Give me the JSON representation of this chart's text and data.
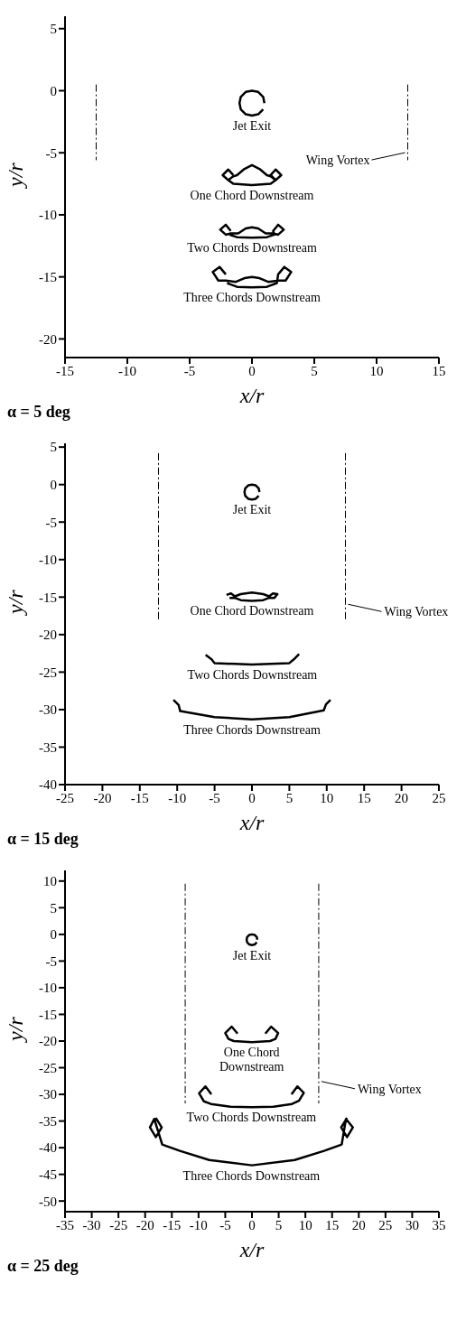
{
  "chart_data": [
    {
      "type": "line",
      "title": "α = 5 deg",
      "xlabel": "x/r",
      "ylabel": "y/r",
      "xlim": [
        -15,
        15
      ],
      "ylim": [
        -21.5,
        6
      ],
      "xticks": [
        -15,
        -10,
        -5,
        0,
        5,
        10,
        15
      ],
      "yticks": [
        -20,
        -15,
        -10,
        -5,
        0,
        5
      ],
      "marker": "none",
      "series": [
        {
          "color": "#000000",
          "x": [
            1,
            0.9,
            0.5,
            0,
            -0.5,
            -0.9,
            -1,
            -0.9,
            -0.5,
            0,
            0.5,
            0.9
          ],
          "values": [
            -1,
            -0.5,
            -0.1,
            0,
            -0.1,
            -0.5,
            -1,
            -1.5,
            -1.9,
            -2,
            -1.9,
            -1.5
          ]
        },
        {
          "color": "#000000",
          "x": [
            -1.5,
            -1.9,
            -2.35,
            -1.9,
            -1.5,
            -1.2,
            -0.6,
            0,
            0.6,
            1.2,
            1.5,
            1.9,
            2.35,
            1.9,
            1.5,
            1.9,
            1.5,
            0,
            -1.5,
            -1.9
          ],
          "values": [
            -6.8,
            -6.35,
            -6.8,
            -7.2,
            -6.9,
            -6.8,
            -6.3,
            -6.0,
            -6.3,
            -6.8,
            -6.9,
            -7.2,
            -6.8,
            -6.35,
            -6.8,
            -7.2,
            -7.5,
            -7.6,
            -7.5,
            -7.2
          ]
        },
        {
          "color": "#000000",
          "x": [
            -1.7,
            -2.1,
            -2.55,
            -2.1,
            -1.7,
            -1.1,
            -0.5,
            0,
            0.5,
            1.1,
            1.7,
            2.1,
            2.55,
            2.1,
            1.7,
            1.8,
            1.2,
            0,
            -1.2,
            -1.8
          ],
          "values": [
            -11.3,
            -10.8,
            -11.2,
            -11.6,
            -11.5,
            -11.5,
            -11.1,
            -11.0,
            -11.1,
            -11.5,
            -11.5,
            -11.6,
            -11.2,
            -10.8,
            -11.3,
            -11.6,
            -11.8,
            -11.85,
            -11.8,
            -11.6
          ]
        },
        {
          "color": "#000000",
          "x": [
            -2.1,
            -2.6,
            -3.15,
            -2.7,
            -2.1,
            -1.3,
            -0.6,
            0,
            0.6,
            1.3,
            2.1,
            2.7,
            3.15,
            2.6,
            2.1,
            2.0,
            1.2,
            0,
            -1.2,
            -2.0
          ],
          "values": [
            -14.8,
            -14.2,
            -14.6,
            -15.3,
            -15.3,
            -15.4,
            -15.1,
            -15.0,
            -15.1,
            -15.4,
            -15.3,
            -15.3,
            -14.6,
            -14.2,
            -14.8,
            -15.5,
            -15.8,
            -15.85,
            -15.8,
            -15.5
          ]
        },
        {
          "color": "#000000",
          "line_style": "dashed",
          "x": [
            -12.5,
            -12.5
          ],
          "values": [
            0.5,
            -5.6
          ]
        },
        {
          "color": "#000000",
          "line_style": "dashed",
          "x": [
            12.5,
            12.5
          ],
          "values": [
            0.5,
            -5.6
          ]
        }
      ],
      "annotations": [
        "Jet Exit",
        "One Chord Downstream",
        "Two Chords Downstream",
        "Three Chords Downstream",
        "Wing Vortex"
      ]
    },
    {
      "type": "line",
      "title": "α = 15 deg",
      "xlabel": "x/r",
      "ylabel": "y/r",
      "xlim": [
        -25,
        25
      ],
      "ylim": [
        -40,
        5.5
      ],
      "xticks": [
        -25,
        -20,
        -15,
        -10,
        -5,
        0,
        5,
        10,
        15,
        20,
        25
      ],
      "yticks": [
        -40,
        -35,
        -30,
        -25,
        -20,
        -15,
        -10,
        -5,
        0,
        5
      ],
      "marker": "none",
      "series": [
        {
          "color": "#000000",
          "x": [
            1,
            0.9,
            0.5,
            0,
            -0.5,
            -0.9,
            -1,
            -0.9,
            -0.5,
            0,
            0.5,
            0.9
          ],
          "values": [
            -1,
            -0.5,
            -0.1,
            0,
            -0.1,
            -0.5,
            -1,
            -1.5,
            -1.9,
            -2,
            -1.9,
            -1.5
          ]
        },
        {
          "color": "#000000",
          "x": [
            -3.4,
            -2.8,
            -2.3,
            -1.5,
            0,
            1.5,
            2.3,
            2.8,
            3.4,
            3.0,
            2.3,
            1.5,
            0,
            -1.5,
            -2.3,
            -3.0
          ],
          "values": [
            -14.7,
            -14.5,
            -14.9,
            -14.6,
            -14.4,
            -14.6,
            -14.9,
            -14.5,
            -14.6,
            -15.1,
            -15.1,
            -15.4,
            -15.5,
            -15.4,
            -15.1,
            -15.1
          ]
        },
        {
          "color": "#000000",
          "x": [
            -6.2,
            -5.4,
            -5.0,
            0,
            5.0,
            5.6,
            6.3
          ],
          "values": [
            -22.7,
            -23.3,
            -23.8,
            -24.0,
            -23.8,
            -23.3,
            -22.6
          ]
        },
        {
          "color": "#000000",
          "x": [
            -10.5,
            -9.8,
            -9.6,
            -5,
            0,
            5,
            9.6,
            9.9,
            10.5
          ],
          "values": [
            -28.7,
            -29.4,
            -30.2,
            -31.0,
            -31.3,
            -31.0,
            -30.1,
            -29.3,
            -28.7
          ]
        },
        {
          "color": "#000000",
          "line_style": "dashed",
          "x": [
            -12.5,
            -12.5
          ],
          "values": [
            4.2,
            -18.2
          ]
        },
        {
          "color": "#000000",
          "line_style": "dashed",
          "x": [
            12.5,
            12.5
          ],
          "values": [
            4.2,
            -18.2
          ]
        }
      ],
      "annotations": [
        "Jet Exit",
        "One Chord Downstream",
        "Two Chords Downstream",
        "Three Chords Downstream",
        "Wing Vortex"
      ]
    },
    {
      "type": "line",
      "title": "α = 25 deg",
      "xlabel": "x/r",
      "ylabel": "y/r",
      "xlim": [
        -35,
        35
      ],
      "ylim": [
        -52,
        12
      ],
      "xticks": [
        -35,
        -30,
        -25,
        -20,
        -15,
        -10,
        -5,
        0,
        5,
        10,
        15,
        20,
        25,
        30,
        35
      ],
      "yticks": [
        -50,
        -45,
        -40,
        -35,
        -30,
        -25,
        -20,
        -15,
        -10,
        -5,
        0,
        5,
        10
      ],
      "marker": "none",
      "series": [
        {
          "color": "#000000",
          "x": [
            1,
            0.9,
            0.5,
            0,
            -0.5,
            -0.9,
            -1,
            -0.9,
            -0.5,
            0,
            0.5,
            0.9
          ],
          "values": [
            -1,
            -0.5,
            -0.1,
            0,
            -0.1,
            -0.5,
            -1,
            -1.5,
            -1.9,
            -2,
            -1.9,
            -1.5
          ]
        },
        {
          "color": "#000000",
          "x": [
            -2.7,
            -3.8,
            -5.0,
            -4.4,
            -3.4,
            0,
            3.4,
            4.4,
            4.9,
            3.6,
            2.5
          ],
          "values": [
            -18.6,
            -17.3,
            -18.5,
            -19.6,
            -20.0,
            -20.2,
            -20.0,
            -19.6,
            -18.5,
            -17.3,
            -18.6
          ]
        },
        {
          "color": "#000000",
          "x": [
            -7.6,
            -8.7,
            -9.9,
            -9.0,
            -7.7,
            -4,
            0,
            4,
            7.5,
            8.8,
            9.7,
            8.5,
            7.4
          ],
          "values": [
            -30,
            -28.5,
            -29.8,
            -31.3,
            -31.8,
            -32.3,
            -32.4,
            -32.3,
            -31.8,
            -31.2,
            -29.7,
            -28.5,
            -30
          ]
        },
        {
          "color": "#000000",
          "x": [
            -18,
            -16.9,
            -18,
            -19.1,
            -18.3,
            -16.8,
            -13.5,
            -8,
            0,
            8,
            13.5,
            16.8,
            17.6,
            18.9,
            17.8,
            16.7,
            17.8
          ],
          "values": [
            -34.4,
            -36.2,
            -38,
            -36.2,
            -34.6,
            -39.4,
            -40.6,
            -42.3,
            -43.3,
            -42.3,
            -40.6,
            -39.4,
            -34.6,
            -36.2,
            -38,
            -36.2,
            -34.4
          ]
        },
        {
          "color": "#000000",
          "line_style": "dashed",
          "x": [
            -12.5,
            -12.5
          ],
          "values": [
            9.5,
            -31.7
          ]
        },
        {
          "color": "#000000",
          "line_style": "dashed",
          "x": [
            12.5,
            12.5
          ],
          "values": [
            9.5,
            -31.7
          ]
        }
      ],
      "annotations": [
        "Jet Exit",
        "One Chord\nDownstream",
        "Two Chords Downstream",
        "Three Chords Downstream",
        "Wing Vortex"
      ]
    }
  ]
}
